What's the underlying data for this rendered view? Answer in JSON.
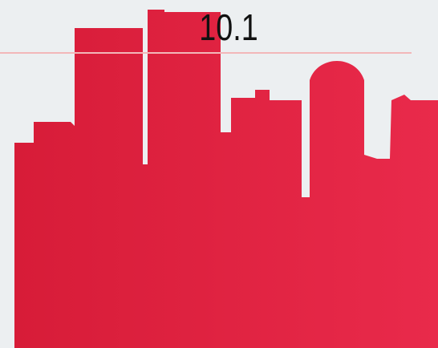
{
  "hud": {
    "score": "10.1"
  }
}
